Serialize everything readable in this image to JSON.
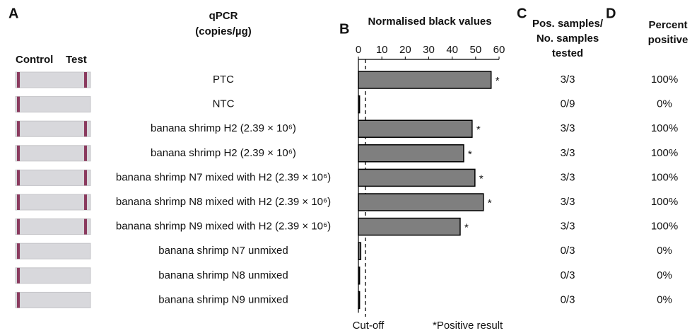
{
  "panels": {
    "a": "A",
    "b": "B",
    "c": "C",
    "d": "D"
  },
  "strip_headers": [
    "Control",
    "Test"
  ],
  "qpcr_header": [
    "qPCR",
    "(copies/µg)"
  ],
  "table": {
    "c_header": [
      "Pos. samples/",
      "No. samples",
      "tested"
    ],
    "d_header": [
      "Percent",
      "positive"
    ],
    "pos_samples": [
      "3/3",
      "0/9",
      "3/3",
      "3/3",
      "3/3",
      "3/3",
      "3/3",
      "0/3",
      "0/3",
      "0/3"
    ],
    "percent_positive": [
      "100%",
      "0%",
      "100%",
      "100%",
      "100%",
      "100%",
      "100%",
      "0%",
      "0%",
      "0%"
    ]
  },
  "chart_data": {
    "type": "bar",
    "orientation": "horizontal",
    "title": "Normalised black values",
    "categories": [
      "PTC",
      "NTC",
      "banana shrimp H2 (2.39 × 10⁶)",
      "banana shrimp H2 (2.39 × 10⁶)",
      "banana shrimp N7 mixed with H2 (2.39 × 10⁶)",
      "banana shrimp N8 mixed with H2 (2.39 × 10⁶)",
      "banana shrimp N9 mixed with H2 (2.39 × 10⁶)",
      "banana shrimp N7 unmixed",
      "banana shrimp N8 unmixed",
      "banana shrimp N9 unmixed"
    ],
    "values": [
      56.6,
      0.5,
      48.5,
      44.9,
      49.7,
      53.3,
      43.4,
      1,
      0.5,
      0.5
    ],
    "color": "#7f7f7f",
    "xlim": [
      0,
      60
    ],
    "xticks": [
      0,
      10,
      20,
      30,
      40,
      50,
      60
    ],
    "cutoff": {
      "value": 3,
      "label": "Cut-off"
    },
    "significance_marker": "*",
    "significant": [
      true,
      false,
      true,
      true,
      true,
      true,
      true,
      false,
      false,
      false
    ],
    "footnote": "*Positive result"
  }
}
